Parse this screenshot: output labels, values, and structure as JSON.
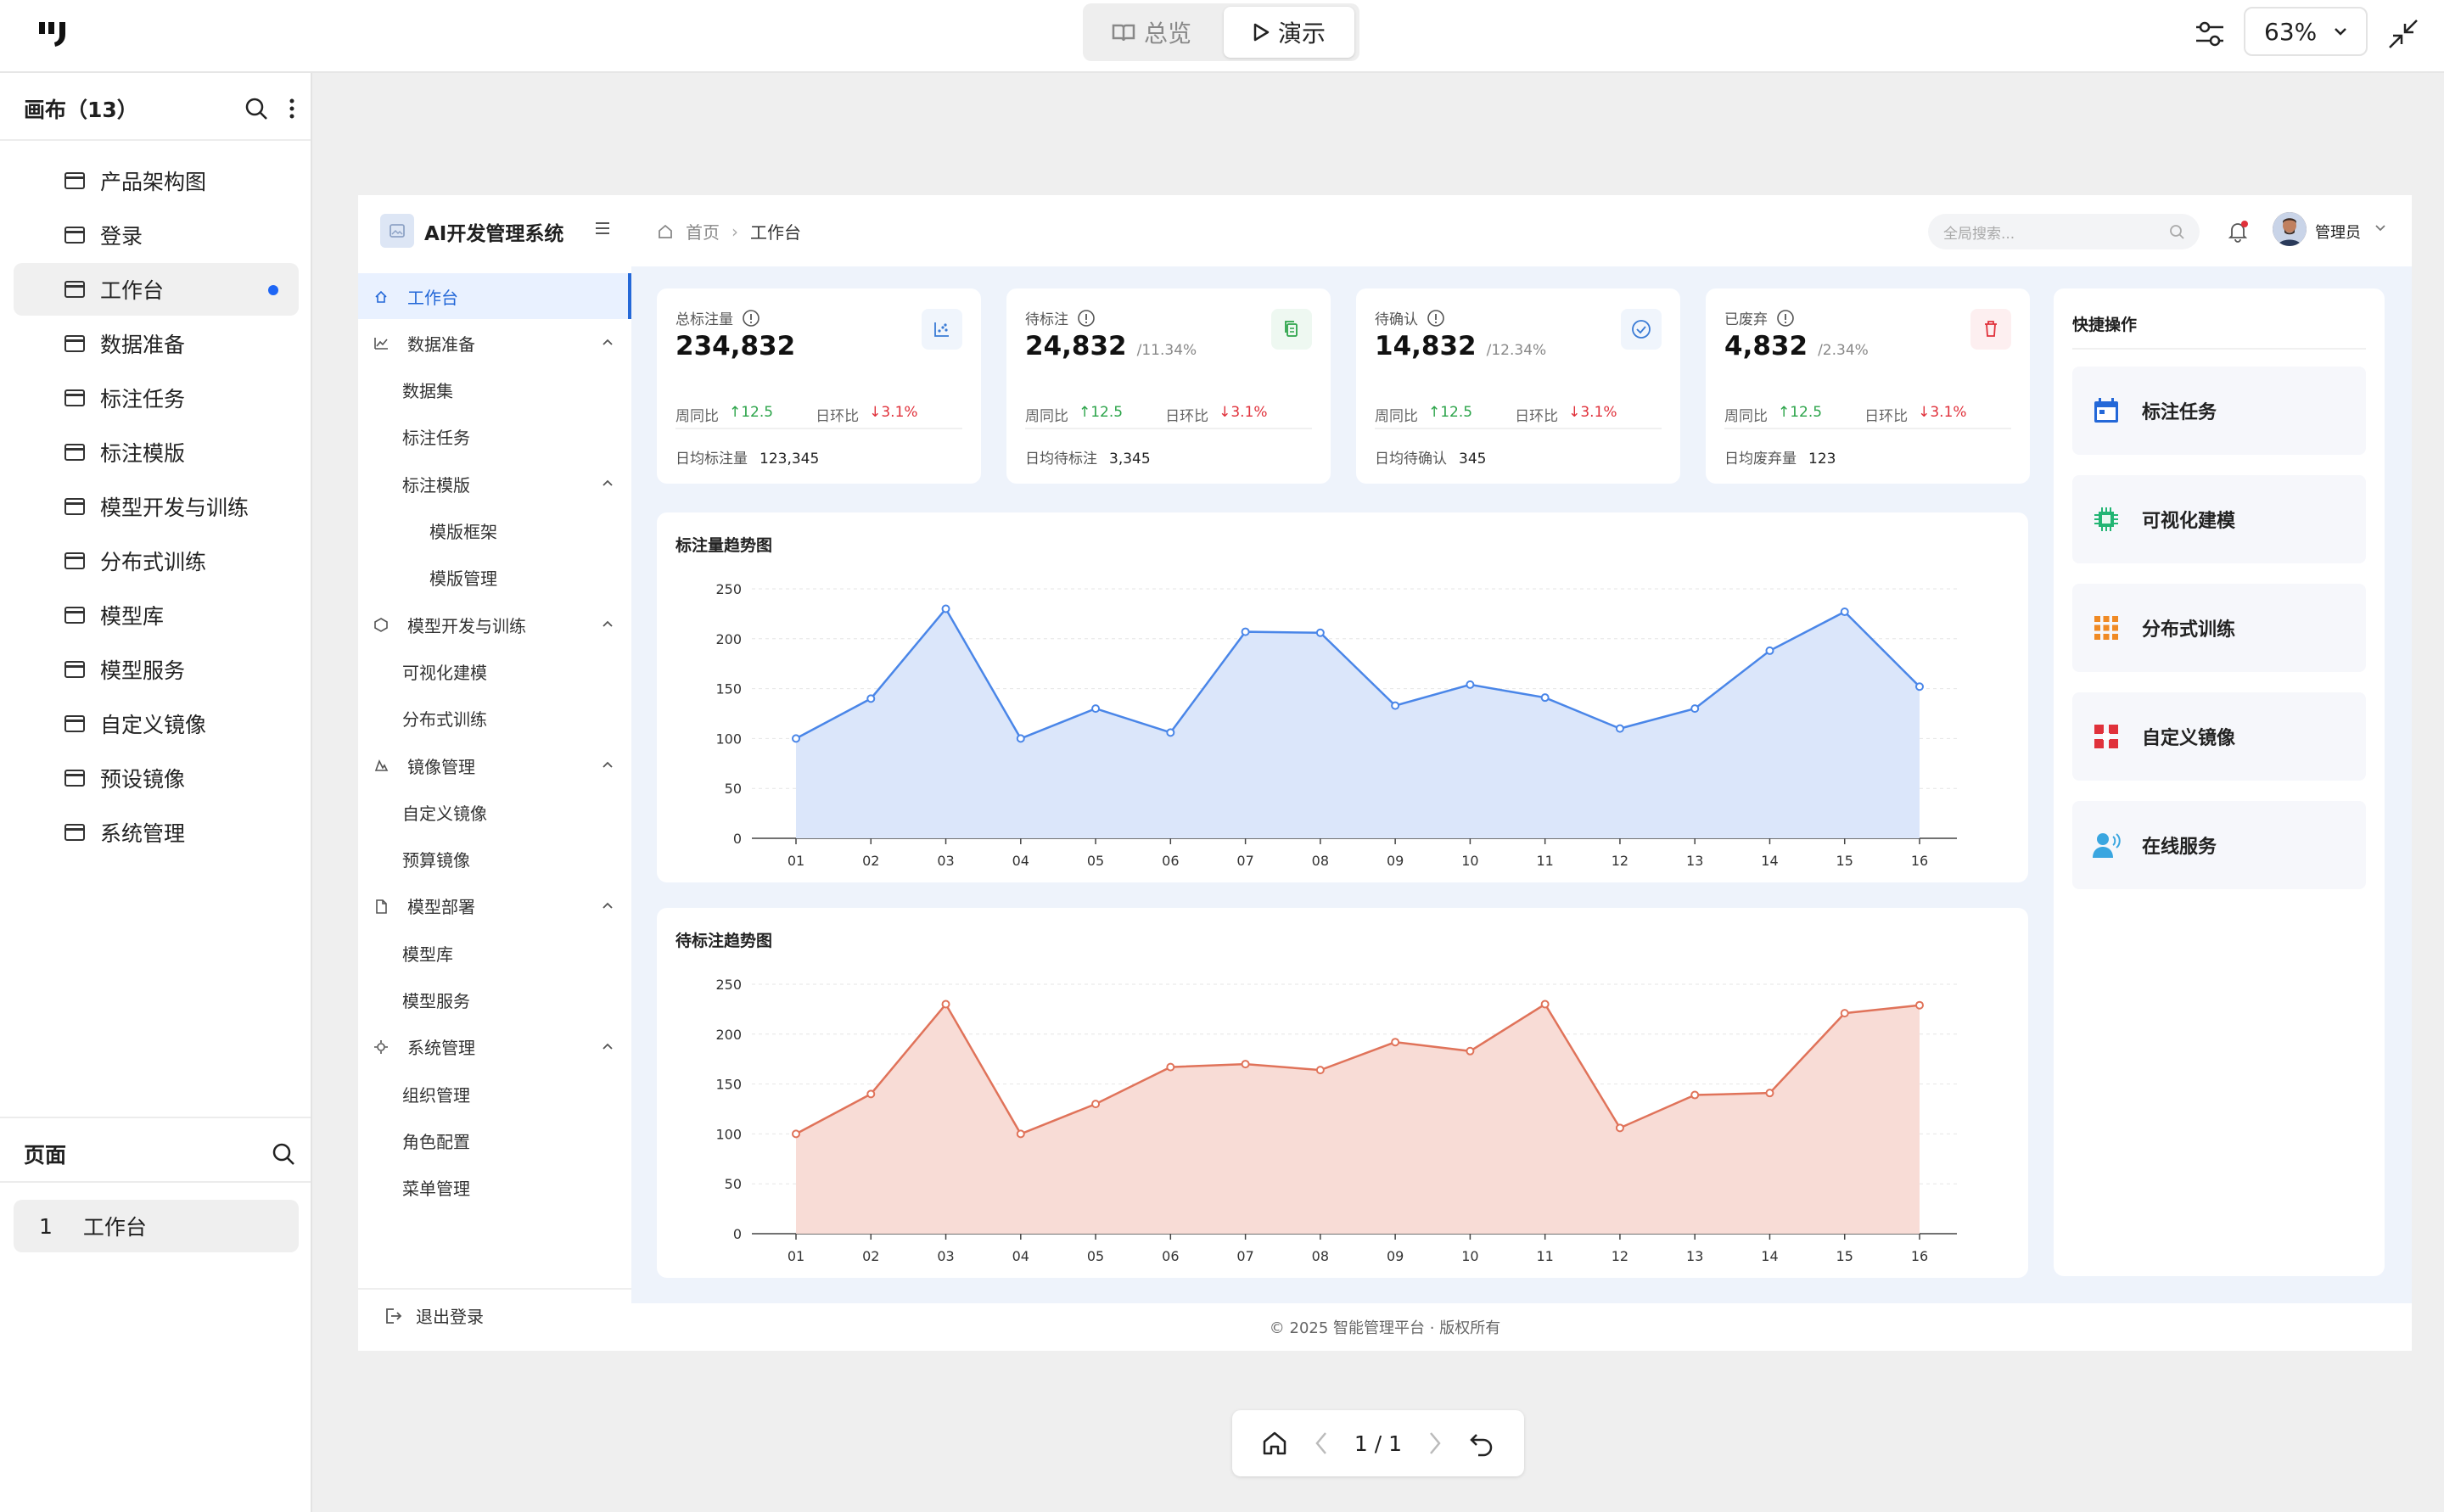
{
  "topbar": {
    "tabs": [
      {
        "label": "总览"
      },
      {
        "label": "演示"
      }
    ],
    "zoom": "63%"
  },
  "left_panel": {
    "canvas_header": "画布（13）",
    "canvas_items": [
      {
        "label": "产品架构图"
      },
      {
        "label": "登录"
      },
      {
        "label": "工作台",
        "active": true
      },
      {
        "label": "数据准备"
      },
      {
        "label": "标注任务"
      },
      {
        "label": "标注模版"
      },
      {
        "label": "模型开发与训练"
      },
      {
        "label": "分布式训练"
      },
      {
        "label": "模型库"
      },
      {
        "label": "模型服务"
      },
      {
        "label": "自定义镜像"
      },
      {
        "label": "预设镜像"
      },
      {
        "label": "系统管理"
      }
    ],
    "pages_header": "页面",
    "pages": [
      {
        "index": "1",
        "label": "工作台"
      }
    ]
  },
  "app": {
    "title": "AI开发管理系统",
    "breadcrumb": [
      "首页",
      "工作台"
    ],
    "search_placeholder": "全局搜索...",
    "user": "管理员",
    "menu": [
      {
        "label": "工作台",
        "level": 0,
        "active": true
      },
      {
        "label": "数据准备",
        "level": 0
      },
      {
        "label": "数据集",
        "level": 1
      },
      {
        "label": "标注任务",
        "level": 1
      },
      {
        "label": "标注模版",
        "level": 1
      },
      {
        "label": "模版框架",
        "level": 2
      },
      {
        "label": "模版管理",
        "level": 2
      },
      {
        "label": "模型开发与训练",
        "level": 0
      },
      {
        "label": "可视化建模",
        "level": 1
      },
      {
        "label": "分布式训练",
        "level": 1
      },
      {
        "label": "镜像管理",
        "level": 0
      },
      {
        "label": "自定义镜像",
        "level": 1
      },
      {
        "label": "预算镜像",
        "level": 1
      },
      {
        "label": "模型部署",
        "level": 0
      },
      {
        "label": "模型库",
        "level": 1
      },
      {
        "label": "模型服务",
        "level": 1
      },
      {
        "label": "系统管理",
        "level": 0
      },
      {
        "label": "组织管理",
        "level": 1
      },
      {
        "label": "角色配置",
        "level": 1
      },
      {
        "label": "菜单管理",
        "level": 1
      }
    ],
    "logout": "退出登录",
    "stats": [
      {
        "label": "总标注量",
        "value": "234,832",
        "ratio": "",
        "yoy_label": "周同比",
        "yoy": "↑12.5",
        "dod_label": "日环比",
        "dod": "↓3.1%",
        "daily_label": "日均标注量",
        "daily": "123,345",
        "icon": "scatter-chart-icon",
        "color": "#3a7bd5"
      },
      {
        "label": "待标注",
        "value": "24,832",
        "ratio": "/11.34%",
        "yoy_label": "周同比",
        "yoy": "↑12.5",
        "dod_label": "日环比",
        "dod": "↓3.1%",
        "daily_label": "日均待标注",
        "daily": "3,345",
        "icon": "copy-icon",
        "color": "#2ca44a"
      },
      {
        "label": "待确认",
        "value": "14,832",
        "ratio": "/12.34%",
        "yoy_label": "周同比",
        "yoy": "↑12.5",
        "dod_label": "日环比",
        "dod": "↓3.1%",
        "daily_label": "日均待确认",
        "daily": "345",
        "icon": "check-circle-icon",
        "color": "#3a7bd5"
      },
      {
        "label": "已废弃",
        "value": "4,832",
        "ratio": "/2.34%",
        "yoy_label": "周同比",
        "yoy": "↑12.5",
        "dod_label": "日环比",
        "dod": "↓3.1%",
        "daily_label": "日均废弃量",
        "daily": "123",
        "icon": "trash-icon",
        "color": "#e0313b"
      }
    ],
    "quick_title": "快捷操作",
    "quick_actions": [
      {
        "label": "标注任务",
        "icon": "calendar-icon",
        "color": "#2468d8"
      },
      {
        "label": "可视化建模",
        "icon": "chip-icon",
        "color": "#22b573"
      },
      {
        "label": "分布式训练",
        "icon": "grid-icon",
        "color": "#f08a24"
      },
      {
        "label": "自定义镜像",
        "icon": "blocks-icon",
        "color": "#e0313b"
      },
      {
        "label": "在线服务",
        "icon": "user-voice-icon",
        "color": "#3aa6e0"
      }
    ],
    "footer": "© 2025 智能管理平台 · 版权所有"
  },
  "chart_data": [
    {
      "type": "area",
      "title": "标注量趋势图",
      "categories": [
        "01",
        "02",
        "03",
        "04",
        "05",
        "06",
        "07",
        "08",
        "09",
        "10",
        "11",
        "12",
        "13",
        "14",
        "15",
        "16"
      ],
      "values": [
        100,
        140,
        230,
        100,
        130,
        106,
        207,
        206,
        133,
        154,
        141,
        110,
        130,
        188,
        227,
        152
      ],
      "yticks": [
        "0",
        "50",
        "100",
        "150",
        "200",
        "250"
      ],
      "ylim": [
        0,
        250
      ],
      "color": "#4a86e8",
      "fill": "#dbe6fa",
      "grid": true
    },
    {
      "type": "area",
      "title": "待标注趋势图",
      "categories": [
        "01",
        "02",
        "03",
        "04",
        "05",
        "06",
        "07",
        "08",
        "09",
        "10",
        "11",
        "12",
        "13",
        "14",
        "15",
        "16"
      ],
      "values": [
        100,
        140,
        230,
        100,
        130,
        167,
        170,
        164,
        192,
        183,
        230,
        106,
        139,
        141,
        221,
        229
      ],
      "yticks": [
        "0",
        "50",
        "100",
        "150",
        "200",
        "250"
      ],
      "ylim": [
        0,
        250
      ],
      "color": "#e0735a",
      "fill": "#f8dcd6",
      "grid": true
    }
  ],
  "bottom_nav": {
    "page": "1 / 1"
  }
}
